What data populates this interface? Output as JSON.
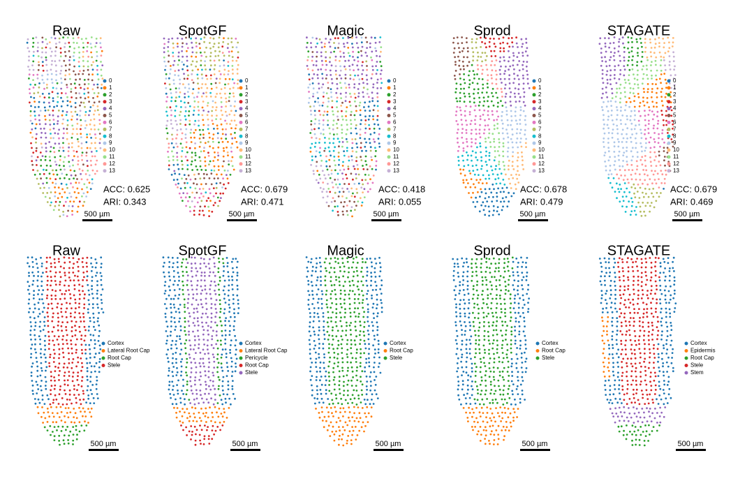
{
  "palette": [
    "#1f77b4",
    "#ff7f0e",
    "#2ca02c",
    "#d62728",
    "#9467bd",
    "#8c564b",
    "#e377c2",
    "#b5bd61",
    "#17becf",
    "#aec7e8",
    "#ffbb78",
    "#98df8a",
    "#ff9896",
    "#c5b0d5"
  ],
  "top_row": [
    {
      "title": "Raw",
      "legend": [
        "0",
        "1",
        "2",
        "3",
        "4",
        "5",
        "6",
        "7",
        "8",
        "9",
        "10",
        "11",
        "12",
        "13"
      ],
      "acc": "ACC:  0.625",
      "ari": "ARI: 0.343",
      "scale_bar": "500 µm"
    },
    {
      "title": "SpotGF",
      "legend": [
        "0",
        "1",
        "2",
        "3",
        "4",
        "5",
        "6",
        "7",
        "8",
        "9",
        "10",
        "11",
        "12",
        "13"
      ],
      "acc": "ACC:  0.679",
      "ari": "ARI: 0.471",
      "scale_bar": "500 µm"
    },
    {
      "title": "Magic",
      "legend": [
        "0",
        "1",
        "2",
        "3",
        "4",
        "5",
        "6",
        "7",
        "8",
        "9",
        "10",
        "11",
        "12",
        "13"
      ],
      "acc": "ACC:  0.418",
      "ari": "ARI: 0.055",
      "scale_bar": "500 µm"
    },
    {
      "title": "Sprod",
      "legend": [
        "0",
        "1",
        "2",
        "3",
        "4",
        "5",
        "6",
        "7",
        "8",
        "9",
        "10",
        "11",
        "12",
        "13"
      ],
      "acc": "ACC:  0.678",
      "ari": "ARI: 0.479",
      "scale_bar": "500 µm"
    },
    {
      "title": "STAGATE",
      "legend": [
        "0",
        "1",
        "2",
        "3",
        "4",
        "5",
        "6",
        "7",
        "8",
        "9",
        "10",
        "11",
        "12",
        "13"
      ],
      "acc": "ACC:  0.679",
      "ari": "ARI: 0.469",
      "scale_bar": "500 µm"
    }
  ],
  "bottom_row": [
    {
      "title": "Raw",
      "legend": [
        "Cortex",
        "Lateral Root Cap",
        "Root Cap",
        "Stele"
      ],
      "scale_bar": "500 µm"
    },
    {
      "title": "SpotGF",
      "legend": [
        "Cortex",
        "Lateral Root Cap",
        "Pericycle",
        "Root Cap",
        "Stele"
      ],
      "scale_bar": "500 µm"
    },
    {
      "title": "Magic",
      "legend": [
        "Cortex",
        "Root Cap",
        "Stele"
      ],
      "scale_bar": "500 µm"
    },
    {
      "title": "Sprod",
      "legend": [
        "Cortex",
        "Root Cap",
        "Stele"
      ],
      "scale_bar": "500 µm"
    },
    {
      "title": "STAGATE",
      "legend": [
        "Cortex",
        "Epidermis",
        "Root Cap",
        "Stele",
        "Stem"
      ],
      "scale_bar": "500 µm"
    }
  ]
}
